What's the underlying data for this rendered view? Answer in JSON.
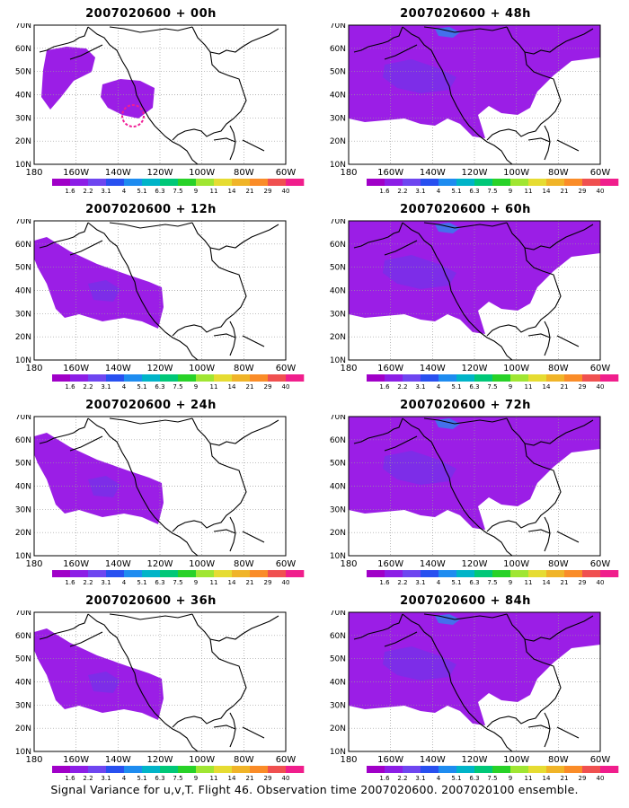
{
  "figure": {
    "caption": "Signal Variance for u,v,T. Flight 46. Observation time 2007020600. 2007020100 ensemble."
  },
  "axes": {
    "lat_labels": [
      "70N",
      "60N",
      "50N",
      "40N",
      "30N",
      "20N",
      "10N"
    ],
    "lon_labels": [
      "180",
      "160W",
      "140W",
      "120W",
      "100W",
      "80W",
      "60W"
    ]
  },
  "colorbar": {
    "labels": [
      "1.6",
      "2.2",
      "3.1",
      "4",
      "5.1",
      "6.3",
      "7.5",
      "9",
      "11",
      "14",
      "21",
      "29",
      "40"
    ],
    "colors": [
      "#a000c8",
      "#8c1ee6",
      "#6e46f0",
      "#2850f0",
      "#1e8cf0",
      "#00b4c8",
      "#00c878",
      "#28d228",
      "#a0e632",
      "#e6dc32",
      "#f0b428",
      "#fa8c28",
      "#f05050",
      "#f01e8c"
    ]
  },
  "colors": {
    "field_fill": "#9b1ee6",
    "field_deep": "#7d2de8",
    "field_blue": "#4470ec",
    "marker_magenta": "#f01e96",
    "coast": "#000000",
    "grid": "#9a9a9a"
  },
  "panels": [
    {
      "title": "2007020600 + 00h",
      "coverage": "minimal"
    },
    {
      "title": "2007020600 + 48h",
      "coverage": "wide"
    },
    {
      "title": "2007020600 + 12h",
      "coverage": "west"
    },
    {
      "title": "2007020600 + 60h",
      "coverage": "wide"
    },
    {
      "title": "2007020600 + 24h",
      "coverage": "west"
    },
    {
      "title": "2007020600 + 72h",
      "coverage": "wide"
    },
    {
      "title": "2007020600 + 36h",
      "coverage": "west"
    },
    {
      "title": "2007020600 + 84h",
      "coverage": "wide"
    }
  ]
}
